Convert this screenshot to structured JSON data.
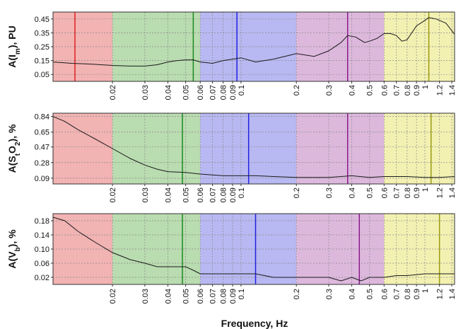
{
  "colors": {
    "bands": [
      "#f2b3b3",
      "#b9dcb0",
      "#b8b8f2",
      "#ddb8dd",
      "#f3f1b2"
    ],
    "markers": [
      "#e02020",
      "#1e8a1e",
      "#2020e0",
      "#8a1a8a",
      "#9a9a10"
    ]
  },
  "xlabel": "Frequency, Hz",
  "chart_data": [
    {
      "type": "line",
      "x_scale": "log",
      "xlim": [
        0.0095,
        1.45
      ],
      "ylim": [
        0.0,
        0.5
      ],
      "ylabel": "A(I_m), PU",
      "ylabel_parts": [
        {
          "t": "A(I",
          "sub": false
        },
        {
          "t": "m",
          "sub": true
        },
        {
          "t": "), PU",
          "sub": false
        }
      ],
      "yticks": [
        0.05,
        0.15,
        0.25,
        0.35,
        0.45
      ],
      "ytick_labels": [
        "0.05",
        "0.15",
        "0.25",
        "0.35",
        "0.45"
      ],
      "xticks": [
        0.02,
        0.03,
        0.04,
        0.05,
        0.06,
        0.07,
        0.08,
        0.09,
        0.1,
        0.2,
        0.3,
        0.4,
        0.5,
        0.6,
        0.7,
        0.8,
        0.9,
        1,
        1.2,
        1.4
      ],
      "xtick_labels": [
        "0.02",
        "0.03",
        "0.04",
        "0.05",
        "0.06",
        "0.07",
        "0.08",
        "0.09",
        "0.1",
        "0.2",
        "0.3",
        "0.4",
        "0.5",
        "0.6",
        "0.7",
        "0.8",
        "0.9",
        "1",
        "1.2",
        "1.4"
      ],
      "bands": [
        [
          0.0095,
          0.02
        ],
        [
          0.02,
          0.06
        ],
        [
          0.06,
          0.2
        ],
        [
          0.2,
          0.6
        ],
        [
          0.6,
          1.45
        ]
      ],
      "markers": [
        0.0125,
        0.055,
        0.095,
        0.38,
        1.05
      ],
      "series": [
        {
          "x": [
            0.0095,
            0.012,
            0.015,
            0.02,
            0.025,
            0.03,
            0.035,
            0.04,
            0.045,
            0.05,
            0.055,
            0.06,
            0.07,
            0.08,
            0.09,
            0.1,
            0.12,
            0.15,
            0.2,
            0.25,
            0.3,
            0.35,
            0.38,
            0.42,
            0.47,
            0.5,
            0.55,
            0.6,
            0.65,
            0.7,
            0.75,
            0.8,
            0.9,
            1.0,
            1.05,
            1.15,
            1.3,
            1.45
          ],
          "y": [
            0.14,
            0.13,
            0.125,
            0.115,
            0.11,
            0.11,
            0.12,
            0.14,
            0.15,
            0.155,
            0.155,
            0.14,
            0.13,
            0.15,
            0.16,
            0.17,
            0.14,
            0.16,
            0.2,
            0.18,
            0.22,
            0.28,
            0.33,
            0.32,
            0.28,
            0.29,
            0.31,
            0.345,
            0.345,
            0.33,
            0.29,
            0.3,
            0.4,
            0.44,
            0.46,
            0.45,
            0.42,
            0.34
          ]
        }
      ]
    },
    {
      "type": "line",
      "x_scale": "log",
      "xlim": [
        0.0095,
        1.45
      ],
      "ylim": [
        0.02,
        0.88
      ],
      "ylabel": "A(S_tO_2), %",
      "ylabel_parts": [
        {
          "t": "A(S",
          "sub": false
        },
        {
          "t": "t",
          "sub": true
        },
        {
          "t": "O",
          "sub": false
        },
        {
          "t": "2",
          "sub": true
        },
        {
          "t": "), %",
          "sub": false
        }
      ],
      "yticks": [
        0.09,
        0.28,
        0.47,
        0.65,
        0.84
      ],
      "ytick_labels": [
        "0.09",
        "0.28",
        "0.47",
        "0.65",
        "0.84"
      ],
      "xticks": [
        0.02,
        0.03,
        0.04,
        0.05,
        0.06,
        0.07,
        0.08,
        0.09,
        0.1,
        0.2,
        0.3,
        0.4,
        0.5,
        0.6,
        0.7,
        0.8,
        0.9,
        1,
        1.2,
        1.4
      ],
      "xtick_labels": [
        "0.02",
        "0.03",
        "0.04",
        "0.05",
        "0.06",
        "0.07",
        "0.08",
        "0.09",
        "0.1",
        "0.2",
        "0.3",
        "0.4",
        "0.5",
        "0.6",
        "0.7",
        "0.8",
        "0.9",
        "1",
        "1.2",
        "1.4"
      ],
      "bands": [
        [
          0.0095,
          0.02
        ],
        [
          0.02,
          0.06
        ],
        [
          0.06,
          0.2
        ],
        [
          0.2,
          0.6
        ],
        [
          0.6,
          1.45
        ]
      ],
      "markers": [
        0.048,
        0.11,
        0.38,
        1.08
      ],
      "marker_colors": [
        "#1e8a1e",
        "#2020e0",
        "#8a1a8a",
        "#9a9a10"
      ],
      "series": [
        {
          "x": [
            0.0095,
            0.011,
            0.013,
            0.016,
            0.02,
            0.025,
            0.03,
            0.035,
            0.04,
            0.05,
            0.06,
            0.08,
            0.1,
            0.12,
            0.15,
            0.2,
            0.25,
            0.3,
            0.35,
            0.4,
            0.5,
            0.6,
            0.7,
            0.8,
            1.0,
            1.2,
            1.45
          ],
          "y": [
            0.84,
            0.78,
            0.68,
            0.57,
            0.45,
            0.33,
            0.25,
            0.2,
            0.17,
            0.16,
            0.14,
            0.12,
            0.12,
            0.12,
            0.11,
            0.1,
            0.1,
            0.1,
            0.11,
            0.12,
            0.1,
            0.11,
            0.11,
            0.11,
            0.1,
            0.1,
            0.11
          ]
        }
      ]
    },
    {
      "type": "line",
      "x_scale": "log",
      "xlim": [
        0.0095,
        1.45
      ],
      "ylim": [
        0.0,
        0.2
      ],
      "ylabel": "A(V_b), %",
      "ylabel_parts": [
        {
          "t": "A(V",
          "sub": false
        },
        {
          "t": "b",
          "sub": true
        },
        {
          "t": "), %",
          "sub": false
        }
      ],
      "yticks": [
        0.02,
        0.06,
        0.1,
        0.14,
        0.18
      ],
      "ytick_labels": [
        "0.02",
        "0.06",
        "0.10",
        "0.14",
        "0.18"
      ],
      "xticks": [
        0.02,
        0.03,
        0.04,
        0.05,
        0.06,
        0.07,
        0.08,
        0.09,
        0.1,
        0.2,
        0.3,
        0.4,
        0.5,
        0.6,
        0.7,
        0.8,
        0.9,
        1,
        1.2,
        1.4
      ],
      "xtick_labels": [
        "0.02",
        "0.03",
        "0.04",
        "0.05",
        "0.06",
        "0.07",
        "0.08",
        "0.09",
        "0.1",
        "0.2",
        "0.3",
        "0.4",
        "0.5",
        "0.6",
        "0.7",
        "0.8",
        "0.9",
        "1",
        "1.2",
        "1.4"
      ],
      "bands": [
        [
          0.0095,
          0.02
        ],
        [
          0.02,
          0.06
        ],
        [
          0.06,
          0.2
        ],
        [
          0.2,
          0.6
        ],
        [
          0.6,
          1.45
        ]
      ],
      "markers": [
        0.048,
        0.12,
        0.44,
        1.2
      ],
      "marker_colors": [
        "#1e8a1e",
        "#2020e0",
        "#8a1a8a",
        "#9a9a10"
      ],
      "series": [
        {
          "x": [
            0.0095,
            0.011,
            0.013,
            0.016,
            0.02,
            0.025,
            0.03,
            0.035,
            0.04,
            0.05,
            0.055,
            0.06,
            0.07,
            0.08,
            0.09,
            0.1,
            0.12,
            0.15,
            0.2,
            0.25,
            0.3,
            0.35,
            0.4,
            0.45,
            0.5,
            0.55,
            0.6,
            0.7,
            0.8,
            1.0,
            1.2,
            1.45
          ],
          "y": [
            0.19,
            0.18,
            0.15,
            0.12,
            0.09,
            0.07,
            0.06,
            0.05,
            0.05,
            0.05,
            0.04,
            0.03,
            0.03,
            0.03,
            0.03,
            0.03,
            0.03,
            0.02,
            0.02,
            0.02,
            0.02,
            0.01,
            0.02,
            0.01,
            0.02,
            0.02,
            0.02,
            0.025,
            0.025,
            0.03,
            0.03,
            0.03
          ]
        }
      ]
    }
  ]
}
